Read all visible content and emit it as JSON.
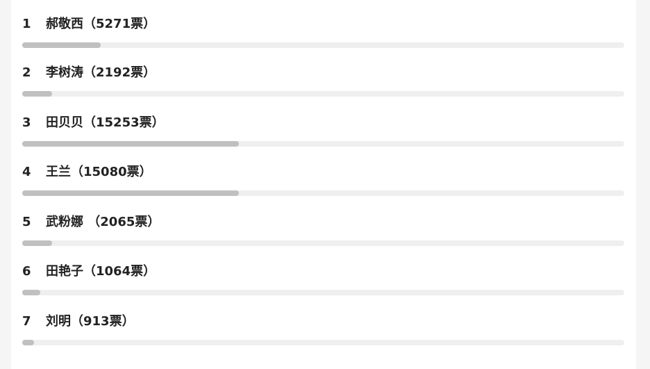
{
  "items": [
    {
      "rank": "1",
      "label": "郝敬西（5271票）",
      "percent": 13
    },
    {
      "rank": "2",
      "label": "李树涛（2192票）",
      "percent": 5
    },
    {
      "rank": "3",
      "label": "田贝贝（15253票）",
      "percent": 36
    },
    {
      "rank": "4",
      "label": "王兰（15080票）",
      "percent": 36
    },
    {
      "rank": "5",
      "label": "武粉娜 （2065票）",
      "percent": 5
    },
    {
      "rank": "6",
      "label": "田艳子（1064票）",
      "percent": 3
    },
    {
      "rank": "7",
      "label": "刘明（913票）",
      "percent": 2
    }
  ],
  "colors": {
    "fill": "#c0c0c0",
    "track": "#efefef",
    "text": "#222222"
  }
}
